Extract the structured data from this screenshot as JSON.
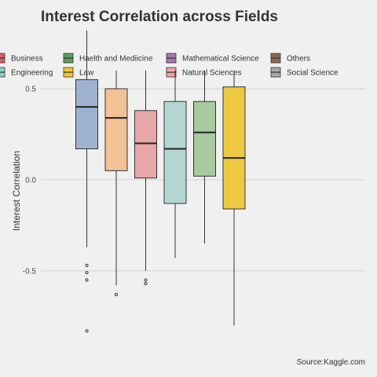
{
  "chart_data": {
    "type": "boxplot",
    "title": "Interest Correlation across Fields",
    "ylabel": "Interest Correlation",
    "xlabel": "",
    "ylim": [
      -0.88,
      0.75
    ],
    "yticks": [
      0.5,
      0.0,
      -0.5
    ],
    "ytick_labels": [
      "0.5",
      "0.0",
      "-0.5"
    ],
    "grid": true,
    "legend_position": "top",
    "caption": "Source:Kaggle.com",
    "legend": [
      {
        "name": "Business",
        "color": "#e05d6a"
      },
      {
        "name": "Engineering",
        "color": "#8fcfc7"
      },
      {
        "name": "Haelth and Mediicine",
        "color": "#5aa05f"
      },
      {
        "name": "Law",
        "color": "#f2c530"
      },
      {
        "name": "Mathematical Science",
        "color": "#a779b3"
      },
      {
        "name": "Natural Sciences",
        "color": "#f0a3a5"
      },
      {
        "name": "Others",
        "color": "#8c6a55"
      },
      {
        "name": "Social Science",
        "color": "#a8a8a8"
      }
    ],
    "boxes": [
      {
        "fill": "#9fb2cf",
        "q1": 0.17,
        "median": 0.4,
        "q3": 0.55,
        "whisker_low": -0.37,
        "whisker_high": 0.82,
        "outliers": [
          -0.47,
          -0.51,
          -0.55,
          -0.83
        ]
      },
      {
        "fill": "#f2c195",
        "q1": 0.05,
        "median": 0.34,
        "q3": 0.5,
        "whisker_low": -0.58,
        "whisker_high": 0.6,
        "outliers": [
          -0.63
        ]
      },
      {
        "fill": "#e8a7a8",
        "q1": 0.01,
        "median": 0.2,
        "q3": 0.38,
        "whisker_low": -0.5,
        "whisker_high": 0.6,
        "outliers": [
          -0.55,
          -0.57
        ]
      },
      {
        "fill": "#b4d6d2",
        "q1": -0.13,
        "median": 0.17,
        "q3": 0.43,
        "whisker_low": -0.43,
        "whisker_high": 0.6,
        "outliers": []
      },
      {
        "fill": "#a8ca9f",
        "q1": 0.02,
        "median": 0.26,
        "q3": 0.43,
        "whisker_low": -0.35,
        "whisker_high": 0.6,
        "outliers": []
      },
      {
        "fill": "#edc941",
        "q1": -0.16,
        "median": 0.12,
        "q3": 0.51,
        "whisker_low": -0.8,
        "whisker_high": 0.6,
        "outliers": []
      }
    ]
  }
}
